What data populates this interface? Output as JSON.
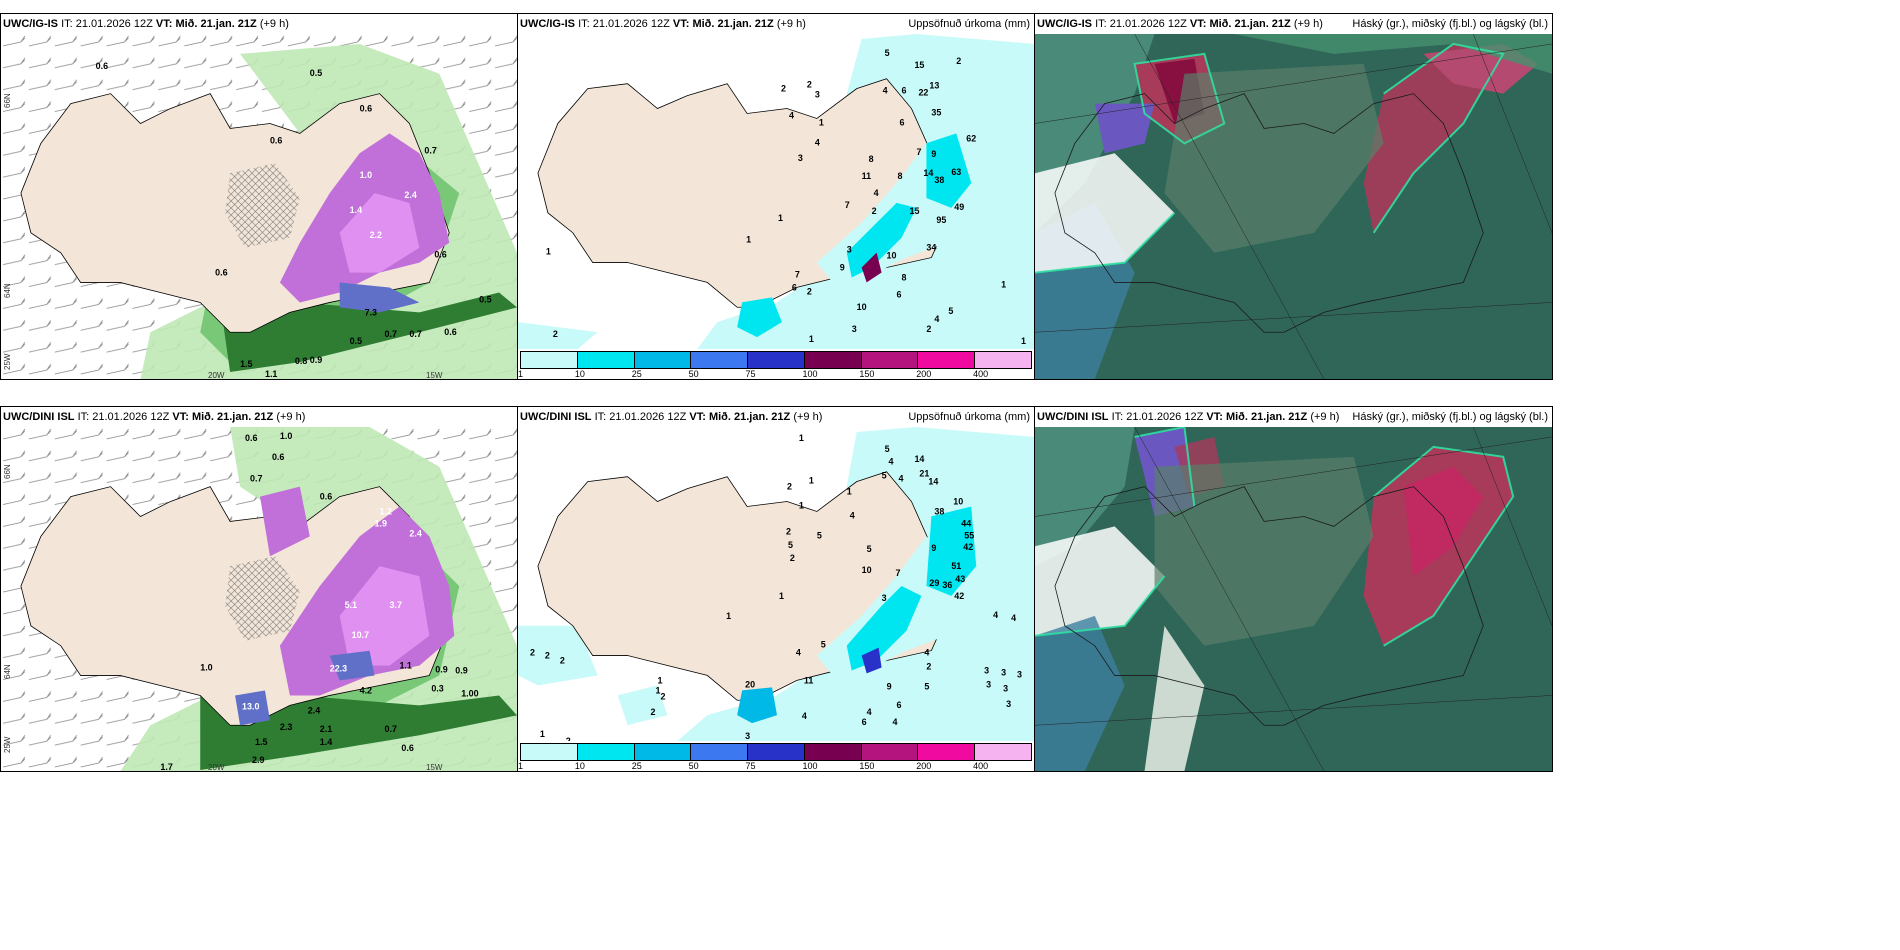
{
  "panels": {
    "p1": {
      "model": "UWC/IG-IS",
      "it_label": "IT:",
      "it": "21.01.2026 12Z",
      "vt_label": "VT:",
      "vt": "Mið. 21.jan. 21Z",
      "lead": "(+9 h)",
      "right_title": ""
    },
    "p2": {
      "model": "UWC/IG-IS",
      "it_label": "IT:",
      "it": "21.01.2026 12Z",
      "vt_label": "VT:",
      "vt": "Mið. 21.jan. 21Z",
      "lead": "(+9 h)",
      "right_title": "Uppsöfnuð úrkoma (mm)"
    },
    "p3": {
      "model": "UWC/IG-IS",
      "it_label": "IT:",
      "it": "21.01.2026 12Z",
      "vt_label": "VT:",
      "vt": "Mið. 21.jan. 21Z",
      "lead": "(+9 h)",
      "right_title": "Háský (gr.), miðský (fj.bl.) og lágský (bl.)"
    },
    "p4": {
      "model": "UWC/DINI ISL",
      "it_label": "IT:",
      "it": "21.01.2026 12Z",
      "vt_label": "VT:",
      "vt": "Mið. 21.jan. 21Z",
      "lead": "(+9 h)",
      "right_title": ""
    },
    "p5": {
      "model": "UWC/DINI ISL",
      "it_label": "IT:",
      "it": "21.01.2026 12Z",
      "vt_label": "VT:",
      "vt": "Mið. 21.jan. 21Z",
      "lead": "(+9 h)",
      "right_title": "Uppsöfnuð úrkoma (mm)"
    },
    "p6": {
      "model": "UWC/DINI ISL",
      "it_label": "IT:",
      "it": "21.01.2026 12Z",
      "vt_label": "VT:",
      "vt": "Mið. 21.jan. 21Z",
      "lead": "(+9 h)",
      "right_title": "Háský (gr.), miðský (fj.bl.) og lágský (bl.)"
    }
  },
  "axis": {
    "lat66": "66N",
    "lat64": "64N",
    "lat_right66": "66N",
    "lat_right64": "64N",
    "lat_bottom": "25W",
    "lon20": "20W",
    "lon15": "15W"
  },
  "colorbar": {
    "ticks": [
      "1",
      "10",
      "25",
      "50",
      "75",
      "100",
      "150",
      "200",
      "400"
    ],
    "colors": [
      "#c8fafa",
      "#00e6f0",
      "#00b9e6",
      "#3c78f0",
      "#2832c8",
      "#780050",
      "#b4147d",
      "#f00aa0",
      "#f5b4f0"
    ]
  },
  "precip_labels_top": [
    "5",
    "15",
    "2",
    "4",
    "6",
    "22",
    "13",
    "2",
    "3",
    "35",
    "2",
    "4",
    "1",
    "6",
    "7",
    "9",
    "4",
    "62",
    "3",
    "8",
    "11",
    "8",
    "14",
    "38",
    "63",
    "4",
    "7",
    "2",
    "15",
    "49",
    "1",
    "95",
    "1",
    "34",
    "1",
    "3",
    "10",
    "9",
    "7",
    "8",
    "6",
    "10",
    "2",
    "6",
    "1",
    "2",
    "5",
    "4",
    "2",
    "3",
    "1",
    "1"
  ],
  "precip_labels_bottom": [
    "1",
    "5",
    "14",
    "4",
    "21",
    "14",
    "5",
    "4",
    "10",
    "1",
    "2",
    "1",
    "2",
    "5",
    "38",
    "44",
    "55",
    "4",
    "1",
    "5",
    "42",
    "2",
    "5",
    "10",
    "9",
    "7",
    "51",
    "1",
    "29",
    "36",
    "43",
    "42",
    "1",
    "3",
    "4",
    "4",
    "2",
    "2",
    "2",
    "4",
    "11",
    "5",
    "4",
    "2",
    "1",
    "3",
    "3",
    "3",
    "3",
    "3",
    "9",
    "5",
    "6",
    "4",
    "2",
    "20",
    "6",
    "3",
    "4"
  ],
  "precip_bottom_extra": [
    "1",
    "2",
    "1",
    "2",
    "4",
    "3"
  ],
  "snow_labels_top": [
    "0.6",
    "0.5",
    "0.6",
    "0.6",
    "0.7",
    "0.7",
    "1.0",
    "1.4",
    "2.4",
    "2.2",
    "1.9",
    "0.6",
    "7.3",
    "0.7",
    "0.7",
    "0.6",
    "0.5",
    "0.8",
    "0.9",
    "1.5",
    "1.1",
    "0.6",
    "0.5"
  ],
  "snow_labels_bottom": [
    "0.6",
    "1.0",
    "0.6",
    "0.7",
    "0.6",
    "1.2",
    "1.9",
    "2.4",
    "3.7",
    "1.0",
    "1.1",
    "0.9",
    "0.9",
    "0.3",
    "1.00",
    "4.2",
    "2.4",
    "2.3",
    "2.1",
    "1.4",
    "0.7",
    "0.6",
    "1.5",
    "2.9",
    "1.7",
    "13.0",
    "22.3",
    "10.7",
    "5.1"
  ]
}
